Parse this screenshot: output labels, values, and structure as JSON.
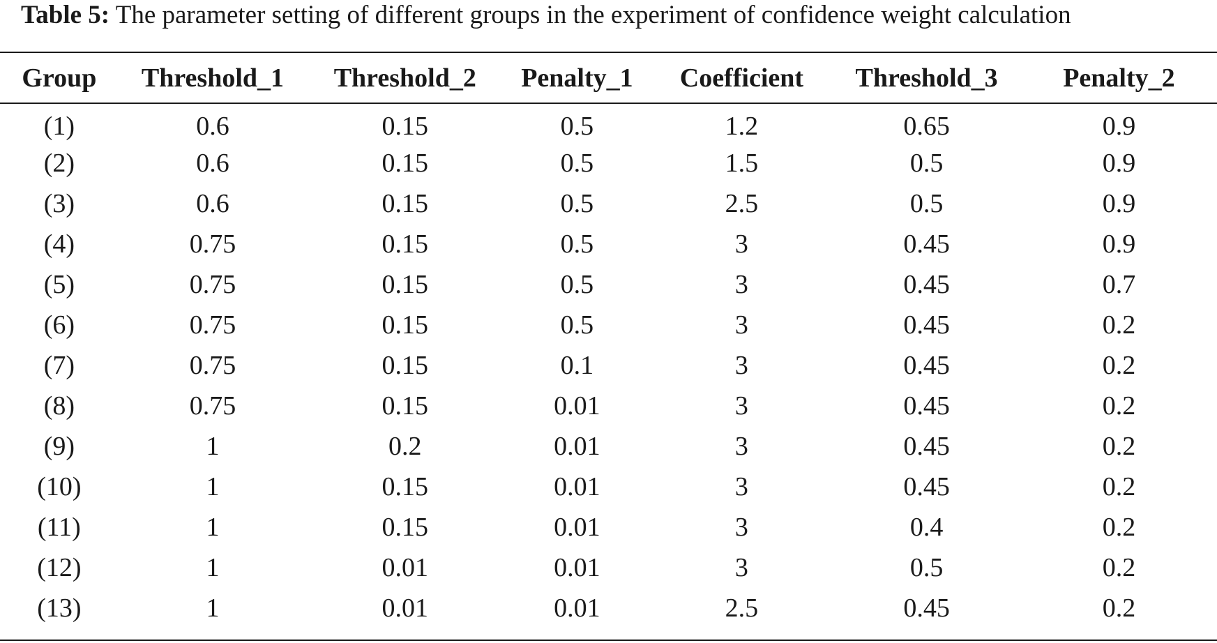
{
  "caption": {
    "label": "Table 5:",
    "text": "The parameter setting of different groups in the experiment of confidence weight calculation"
  },
  "table": {
    "headers": [
      "Group",
      "Threshold_1",
      "Threshold_2",
      "Penalty_1",
      "Coefficient",
      "Threshold_3",
      "Penalty_2"
    ],
    "rows": [
      [
        "(1)",
        "0.6",
        "0.15",
        "0.5",
        "1.2",
        "0.65",
        "0.9"
      ],
      [
        "(2)",
        "0.6",
        "0.15",
        "0.5",
        "1.5",
        "0.5",
        "0.9"
      ],
      [
        "(3)",
        "0.6",
        "0.15",
        "0.5",
        "2.5",
        "0.5",
        "0.9"
      ],
      [
        "(4)",
        "0.75",
        "0.15",
        "0.5",
        "3",
        "0.45",
        "0.9"
      ],
      [
        "(5)",
        "0.75",
        "0.15",
        "0.5",
        "3",
        "0.45",
        "0.7"
      ],
      [
        "(6)",
        "0.75",
        "0.15",
        "0.5",
        "3",
        "0.45",
        "0.2"
      ],
      [
        "(7)",
        "0.75",
        "0.15",
        "0.1",
        "3",
        "0.45",
        "0.2"
      ],
      [
        "(8)",
        "0.75",
        "0.15",
        "0.01",
        "3",
        "0.45",
        "0.2"
      ],
      [
        "(9)",
        "1",
        "0.2",
        "0.01",
        "3",
        "0.45",
        "0.2"
      ],
      [
        "(10)",
        "1",
        "0.15",
        "0.01",
        "3",
        "0.45",
        "0.2"
      ],
      [
        "(11)",
        "1",
        "0.15",
        "0.01",
        "3",
        "0.4",
        "0.2"
      ],
      [
        "(12)",
        "1",
        "0.01",
        "0.01",
        "3",
        "0.5",
        "0.2"
      ],
      [
        "(13)",
        "1",
        "0.01",
        "0.01",
        "2.5",
        "0.45",
        "0.2"
      ]
    ]
  }
}
